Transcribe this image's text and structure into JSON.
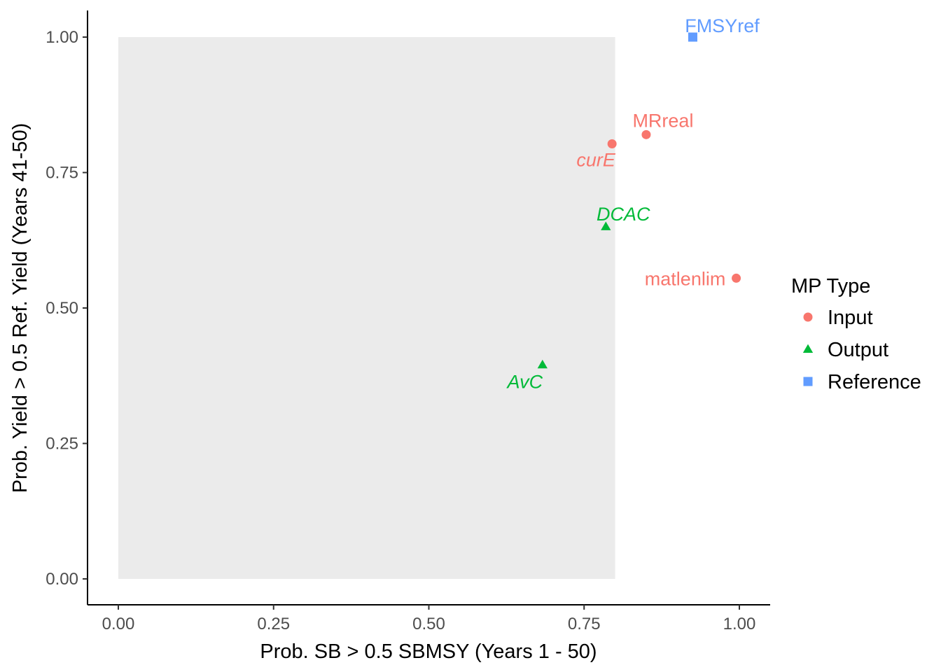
{
  "chart_data": {
    "type": "scatter",
    "xlabel": "Prob. SB > 0.5 SBMSY (Years 1 - 50)",
    "ylabel": "Prob. Yield > 0.5 Ref. Yield (Years 41-50)",
    "xlim": [
      0,
      1
    ],
    "ylim": [
      0,
      1
    ],
    "x_ticks": [
      "0.00",
      "0.25",
      "0.50",
      "0.75",
      "1.00"
    ],
    "y_ticks": [
      "0.00",
      "0.25",
      "0.50",
      "0.75",
      "1.00"
    ],
    "grid": false,
    "shaded_region": {
      "x": [
        0,
        0.8
      ],
      "y": [
        0,
        1
      ],
      "color": "#ebebeb"
    },
    "legend": {
      "title": "MP Type",
      "placement": "right",
      "entries": [
        {
          "label": "Input",
          "shape": "circle",
          "color": "#F8766D"
        },
        {
          "label": "Output",
          "shape": "triangle",
          "color": "#00BA38"
        },
        {
          "label": "Reference",
          "shape": "square",
          "color": "#619CFF"
        }
      ]
    },
    "points": [
      {
        "label": "FMSYref",
        "x": 0.925,
        "y": 1.0,
        "type": "Reference",
        "italic": false
      },
      {
        "label": "MRreal",
        "x": 0.85,
        "y": 0.82,
        "type": "Input",
        "italic": false
      },
      {
        "label": "curE",
        "x": 0.795,
        "y": 0.803,
        "type": "Input",
        "italic": true
      },
      {
        "label": "DCAC",
        "x": 0.785,
        "y": 0.65,
        "type": "Output",
        "italic": true
      },
      {
        "label": "matlenlim",
        "x": 0.995,
        "y": 0.555,
        "type": "Input",
        "italic": false
      },
      {
        "label": "AvC",
        "x": 0.683,
        "y": 0.395,
        "type": "Output",
        "italic": true
      }
    ]
  }
}
